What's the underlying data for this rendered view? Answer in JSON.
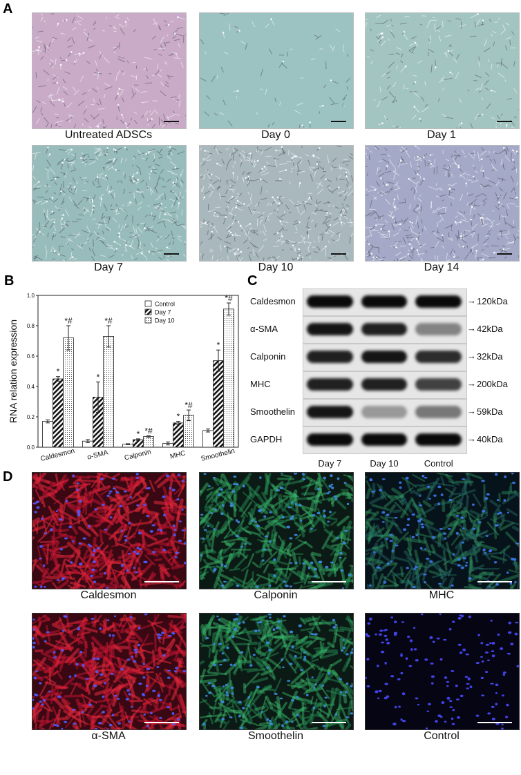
{
  "panels": {
    "A": {
      "letter": "A",
      "tiles": [
        {
          "caption": "Untreated ADSCs",
          "bg": "#c9abc8",
          "texture": "cellsPink"
        },
        {
          "caption": "Day 0",
          "bg": "#9cc3c1",
          "texture": "sparse"
        },
        {
          "caption": "Day 1",
          "bg": "#a3c5c1",
          "texture": "medium"
        },
        {
          "caption": "Day 7",
          "bg": "#97bcbb",
          "texture": "dense"
        },
        {
          "caption": "Day 10",
          "bg": "#a8b8bd",
          "texture": "dense"
        },
        {
          "caption": "Day 14",
          "bg": "#a4a9c7",
          "texture": "dense"
        }
      ]
    },
    "B": {
      "letter": "B"
    },
    "C": {
      "letter": "C",
      "rows": [
        {
          "label": "Caldesmon",
          "kda": "120kDa"
        },
        {
          "label": "α-SMA",
          "kda": "42kDa"
        },
        {
          "label": "Calponin",
          "kda": "32kDa"
        },
        {
          "label": "MHC",
          "kda": "200kDa"
        },
        {
          "label": "Smoothelin",
          "kda": "59kDa"
        },
        {
          "label": "GAPDH",
          "kda": "40kDa"
        }
      ],
      "lanes": [
        "Day 7",
        "Day 10",
        "Control"
      ],
      "intensity": [
        [
          1.0,
          1.0,
          1.0
        ],
        [
          0.95,
          0.9,
          0.45
        ],
        [
          0.9,
          0.95,
          0.85
        ],
        [
          0.9,
          0.9,
          0.75
        ],
        [
          0.95,
          0.35,
          0.5
        ],
        [
          1.0,
          1.0,
          1.0
        ]
      ]
    },
    "D": {
      "letter": "D",
      "tiles": [
        {
          "caption": "Caldesmon",
          "tone": "red"
        },
        {
          "caption": "Calponin",
          "tone": "green"
        },
        {
          "caption": "MHC",
          "tone": "green2"
        },
        {
          "caption": "α-SMA",
          "tone": "red"
        },
        {
          "caption": "Smoothelin",
          "tone": "green"
        },
        {
          "caption": "Control",
          "tone": "blue"
        }
      ]
    }
  },
  "chart_data": {
    "type": "bar",
    "title": "",
    "xlabel": "",
    "ylabel": "RNA relation expression",
    "ylim": [
      0,
      1.0
    ],
    "yticks": [
      "0.0",
      "0.2",
      "0.4",
      "0.6",
      "0.8",
      "1.0"
    ],
    "categories": [
      "Caldesmon",
      "α-SMA",
      "Calponin",
      "MHC",
      "Smoothelin"
    ],
    "legend_position": "top-right",
    "series": [
      {
        "name": "Control",
        "fill": "white",
        "values": [
          0.17,
          0.04,
          0.02,
          0.025,
          0.11
        ],
        "errors": [
          0.01,
          0.01,
          0.003,
          0.01,
          0.01
        ],
        "marks": [
          "",
          "",
          "",
          "",
          ""
        ]
      },
      {
        "name": "Day 7",
        "fill": "hatch",
        "values": [
          0.45,
          0.33,
          0.05,
          0.16,
          0.57
        ],
        "errors": [
          0.015,
          0.1,
          0.005,
          0.01,
          0.07
        ],
        "marks": [
          "*",
          "*",
          "*",
          "*",
          "*"
        ]
      },
      {
        "name": "Day 10",
        "fill": "dots",
        "values": [
          0.72,
          0.73,
          0.07,
          0.21,
          0.91
        ],
        "errors": [
          0.08,
          0.07,
          0.005,
          0.035,
          0.04
        ],
        "marks": [
          "*#",
          "*#",
          "*#",
          "*#",
          "*#"
        ]
      }
    ]
  }
}
